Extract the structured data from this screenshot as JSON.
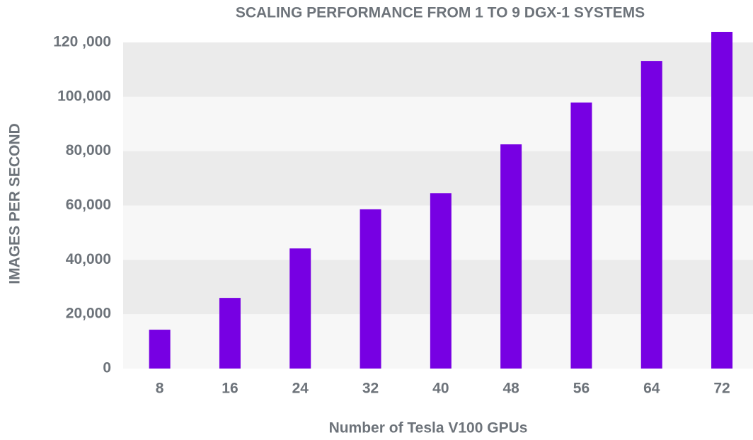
{
  "chart_data": {
    "type": "bar",
    "title": "SCALING PERFORMANCE FROM 1 TO 9 DGX-1 SYSTEMS",
    "x_label": "Number of Tesla V100 GPUs",
    "y_label": "IMAGES PER SECOND",
    "categories": [
      "8",
      "16",
      "24",
      "32",
      "40",
      "48",
      "56",
      "64",
      "72"
    ],
    "values": [
      14300,
      26000,
      44200,
      58600,
      64500,
      82500,
      97900,
      113200,
      123900
    ],
    "color": "#7700e3",
    "ylim": [
      0,
      120000
    ],
    "yticks": [
      0,
      {
        "value": 20000,
        "label": "20,000"
      },
      {
        "value": 40000,
        "label": "40,000"
      },
      {
        "value": 60000,
        "label": "60,000"
      },
      {
        "value": 80000,
        "label": "80,000"
      },
      {
        "value": 100000,
        "label": "100,000"
      },
      {
        "value": 120000,
        "label": "120 ,000"
      }
    ],
    "grid": true
  }
}
